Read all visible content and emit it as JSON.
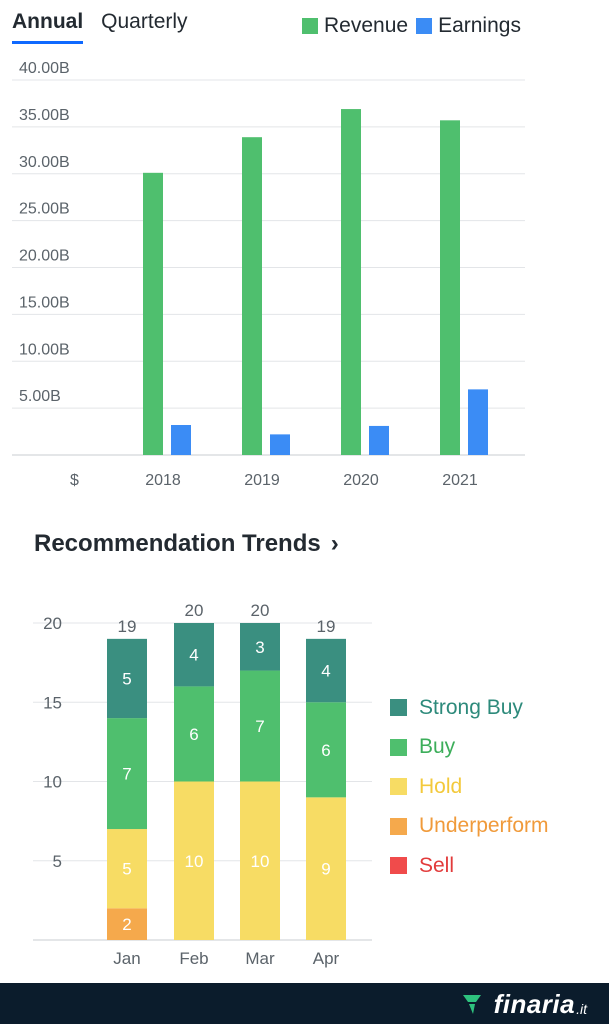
{
  "tabs": [
    {
      "label": "Annual",
      "active": true
    },
    {
      "label": "Quarterly",
      "active": false
    }
  ],
  "financials_legend": [
    {
      "label": "Revenue",
      "color": "#4fbf6e"
    },
    {
      "label": "Earnings",
      "color": "#3b8cf5"
    }
  ],
  "section": {
    "title": "Recommendation Trends",
    "icon": "chevron-right-icon"
  },
  "brand": {
    "name": "finaria",
    "tld": ".it",
    "logo_color": "#2ec27e"
  },
  "chart_data": [
    {
      "type": "bar",
      "categories": [
        "2018",
        "2019",
        "2020",
        "2021"
      ],
      "series": [
        {
          "name": "Revenue",
          "color": "#4fbf6e",
          "values": [
            30.1,
            33.9,
            36.9,
            35.7
          ]
        },
        {
          "name": "Earnings",
          "color": "#3b8cf5",
          "values": [
            3.2,
            2.2,
            3.1,
            7.0
          ]
        }
      ],
      "yticks": [
        "5.00B",
        "10.00B",
        "15.00B",
        "20.00B",
        "25.00B",
        "30.00B",
        "35.00B",
        "40.00B"
      ],
      "ytick_values": [
        5,
        10,
        15,
        20,
        25,
        30,
        35,
        40
      ],
      "currency_label": "$",
      "ylim": [
        0,
        40
      ],
      "grid": true,
      "legend": "top-right"
    },
    {
      "type": "bar",
      "stacked": true,
      "categories": [
        "Jan",
        "Feb",
        "Mar",
        "Apr"
      ],
      "totals": [
        19,
        20,
        20,
        19
      ],
      "series": [
        {
          "name": "Sell",
          "color": "#f04b4b",
          "text_color": "#e23b3b",
          "values": [
            0,
            0,
            0,
            0
          ]
        },
        {
          "name": "Underperform",
          "color": "#f5a94c",
          "text_color": "#f09a3a",
          "values": [
            2,
            0,
            0,
            0
          ]
        },
        {
          "name": "Hold",
          "color": "#f7dc64",
          "text_color": "#f3c93b",
          "values": [
            5,
            10,
            10,
            9
          ]
        },
        {
          "name": "Buy",
          "color": "#4fbf6e",
          "text_color": "#3cae5a",
          "values": [
            7,
            6,
            7,
            6
          ]
        },
        {
          "name": "Strong Buy",
          "color": "#3a8f80",
          "text_color": "#2d8a7b",
          "values": [
            5,
            4,
            3,
            4
          ]
        }
      ],
      "legend_order": [
        "Strong Buy",
        "Buy",
        "Hold",
        "Underperform",
        "Sell"
      ],
      "yticks": [
        5,
        10,
        15,
        20
      ],
      "ylim": [
        0,
        20
      ],
      "legend": "right"
    }
  ]
}
